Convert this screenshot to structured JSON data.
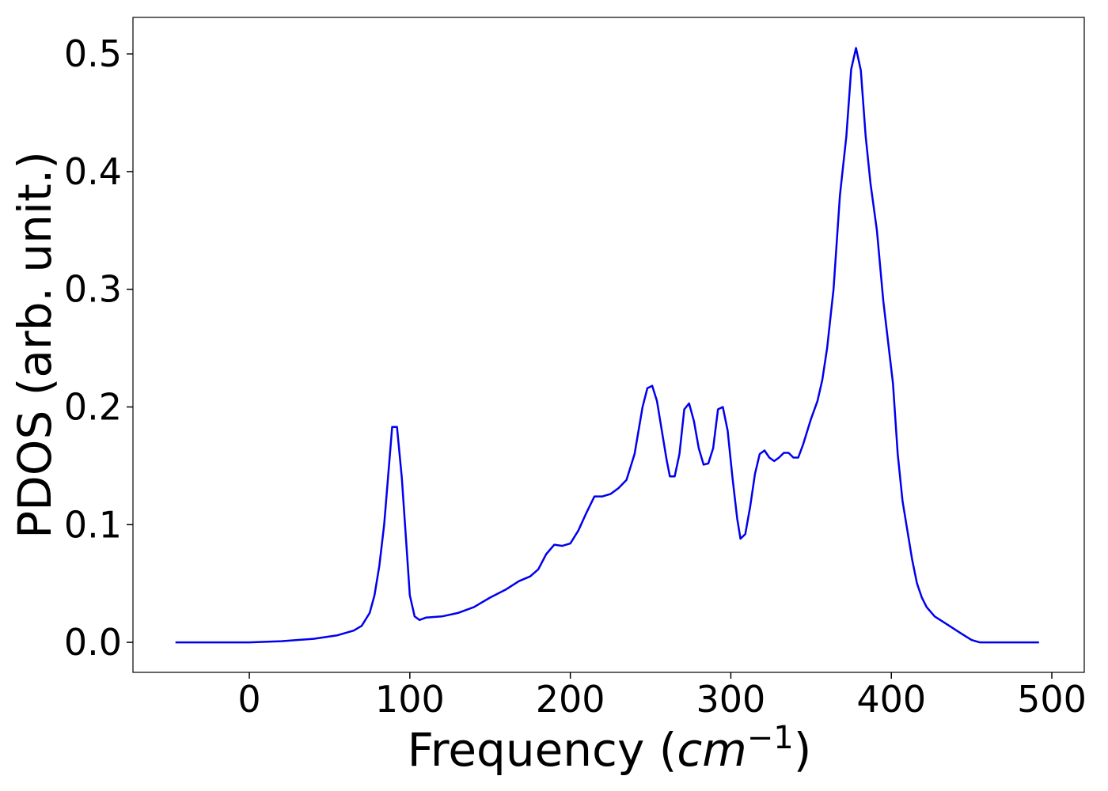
{
  "chart_data": {
    "type": "line",
    "xlabel": [
      "Frequency (",
      "cm",
      "−1",
      ")"
    ],
    "ylabel": "PDOS (arb. unit.)",
    "color": "#0000ee",
    "x": [
      -46,
      0,
      20,
      40,
      55,
      65,
      70,
      75,
      78,
      81,
      84,
      87,
      89,
      92,
      95,
      98,
      100,
      103,
      106,
      110,
      120,
      130,
      140,
      150,
      160,
      168,
      175,
      180,
      185,
      190,
      195,
      200,
      205,
      210,
      215,
      220,
      225,
      230,
      235,
      240,
      245,
      248,
      251,
      254,
      257,
      260,
      262,
      265,
      268,
      271,
      274,
      277,
      280,
      283,
      286,
      289,
      292,
      295,
      298,
      301,
      304,
      306,
      309,
      312,
      315,
      318,
      321,
      324,
      327,
      330,
      333,
      336,
      339,
      342,
      345,
      350,
      354,
      357,
      360,
      364,
      368,
      372,
      375,
      378,
      381,
      384,
      387,
      391,
      395,
      398,
      401,
      404,
      407,
      410,
      413,
      416,
      419,
      422,
      427,
      435,
      443,
      450,
      455,
      470,
      492
    ],
    "values": [
      0,
      0,
      0.001,
      0.003,
      0.006,
      0.01,
      0.014,
      0.025,
      0.04,
      0.065,
      0.1,
      0.15,
      0.183,
      0.183,
      0.14,
      0.08,
      0.04,
      0.022,
      0.019,
      0.021,
      0.022,
      0.025,
      0.03,
      0.038,
      0.045,
      0.052,
      0.056,
      0.062,
      0.075,
      0.083,
      0.082,
      0.084,
      0.095,
      0.11,
      0.124,
      0.124,
      0.126,
      0.131,
      0.138,
      0.16,
      0.2,
      0.216,
      0.218,
      0.205,
      0.18,
      0.155,
      0.141,
      0.141,
      0.16,
      0.198,
      0.203,
      0.188,
      0.165,
      0.151,
      0.152,
      0.165,
      0.198,
      0.2,
      0.18,
      0.14,
      0.105,
      0.088,
      0.092,
      0.115,
      0.143,
      0.16,
      0.163,
      0.157,
      0.154,
      0.157,
      0.161,
      0.161,
      0.157,
      0.157,
      0.168,
      0.19,
      0.205,
      0.223,
      0.25,
      0.3,
      0.38,
      0.43,
      0.487,
      0.505,
      0.486,
      0.43,
      0.39,
      0.35,
      0.29,
      0.255,
      0.22,
      0.16,
      0.12,
      0.095,
      0.07,
      0.05,
      0.038,
      0.03,
      0.022,
      0.015,
      0.008,
      0.002,
      0,
      0,
      0
    ],
    "xlim": [
      -72.5,
      520.2
    ],
    "xticks": [
      0,
      100,
      200,
      300,
      400,
      500
    ],
    "ylim": [
      -0.0255,
      0.531
    ],
    "yticks": [
      {
        "value": 0,
        "label": "0.0"
      },
      0.1,
      0.2,
      0.3,
      0.4,
      0.5
    ]
  }
}
